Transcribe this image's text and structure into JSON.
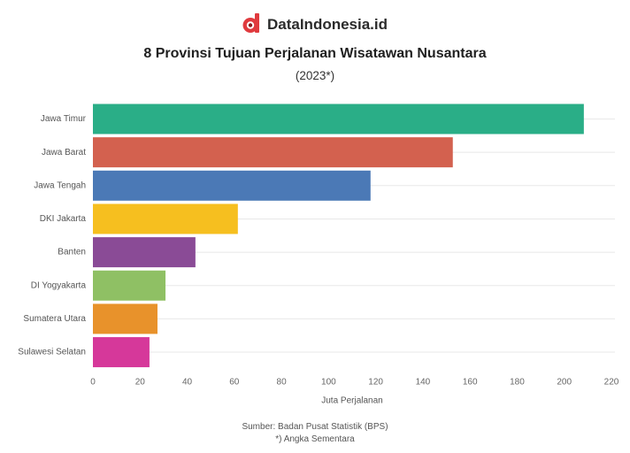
{
  "brand": {
    "name": "DataIndonesia.id",
    "icon": "dataindonesia-logo-icon",
    "color": "#e03a3e"
  },
  "chart_data": {
    "type": "bar",
    "orientation": "horizontal",
    "title": "8 Provinsi Tujuan Perjalanan Wisatawan Nusantara",
    "subtitle": "(2023*)",
    "categories": [
      "Jawa Timur",
      "Jawa Barat",
      "Jawa Tengah",
      "DKI Jakarta",
      "Banten",
      "DI Yogyakarta",
      "Sumatera Utara",
      "Sulawesi Selatan"
    ],
    "values": [
      208.3,
      152.7,
      117.8,
      61.5,
      43.5,
      30.8,
      27.4,
      24.0
    ],
    "colors": [
      "#2aae87",
      "#d3614f",
      "#4b79b6",
      "#f6bf1f",
      "#8a4b96",
      "#8fc064",
      "#e8922b",
      "#d6389a"
    ],
    "xlabel": "Juta Perjalanan",
    "ylabel": "",
    "xlim": [
      0,
      220
    ],
    "xticks": [
      0,
      20,
      40,
      60,
      80,
      100,
      120,
      140,
      160,
      180,
      200,
      220
    ],
    "grid": true,
    "legend": "none"
  },
  "footer": {
    "source": "Sumber: Badan Pusat Statistik (BPS)",
    "note": "*) Angka Sementara"
  }
}
